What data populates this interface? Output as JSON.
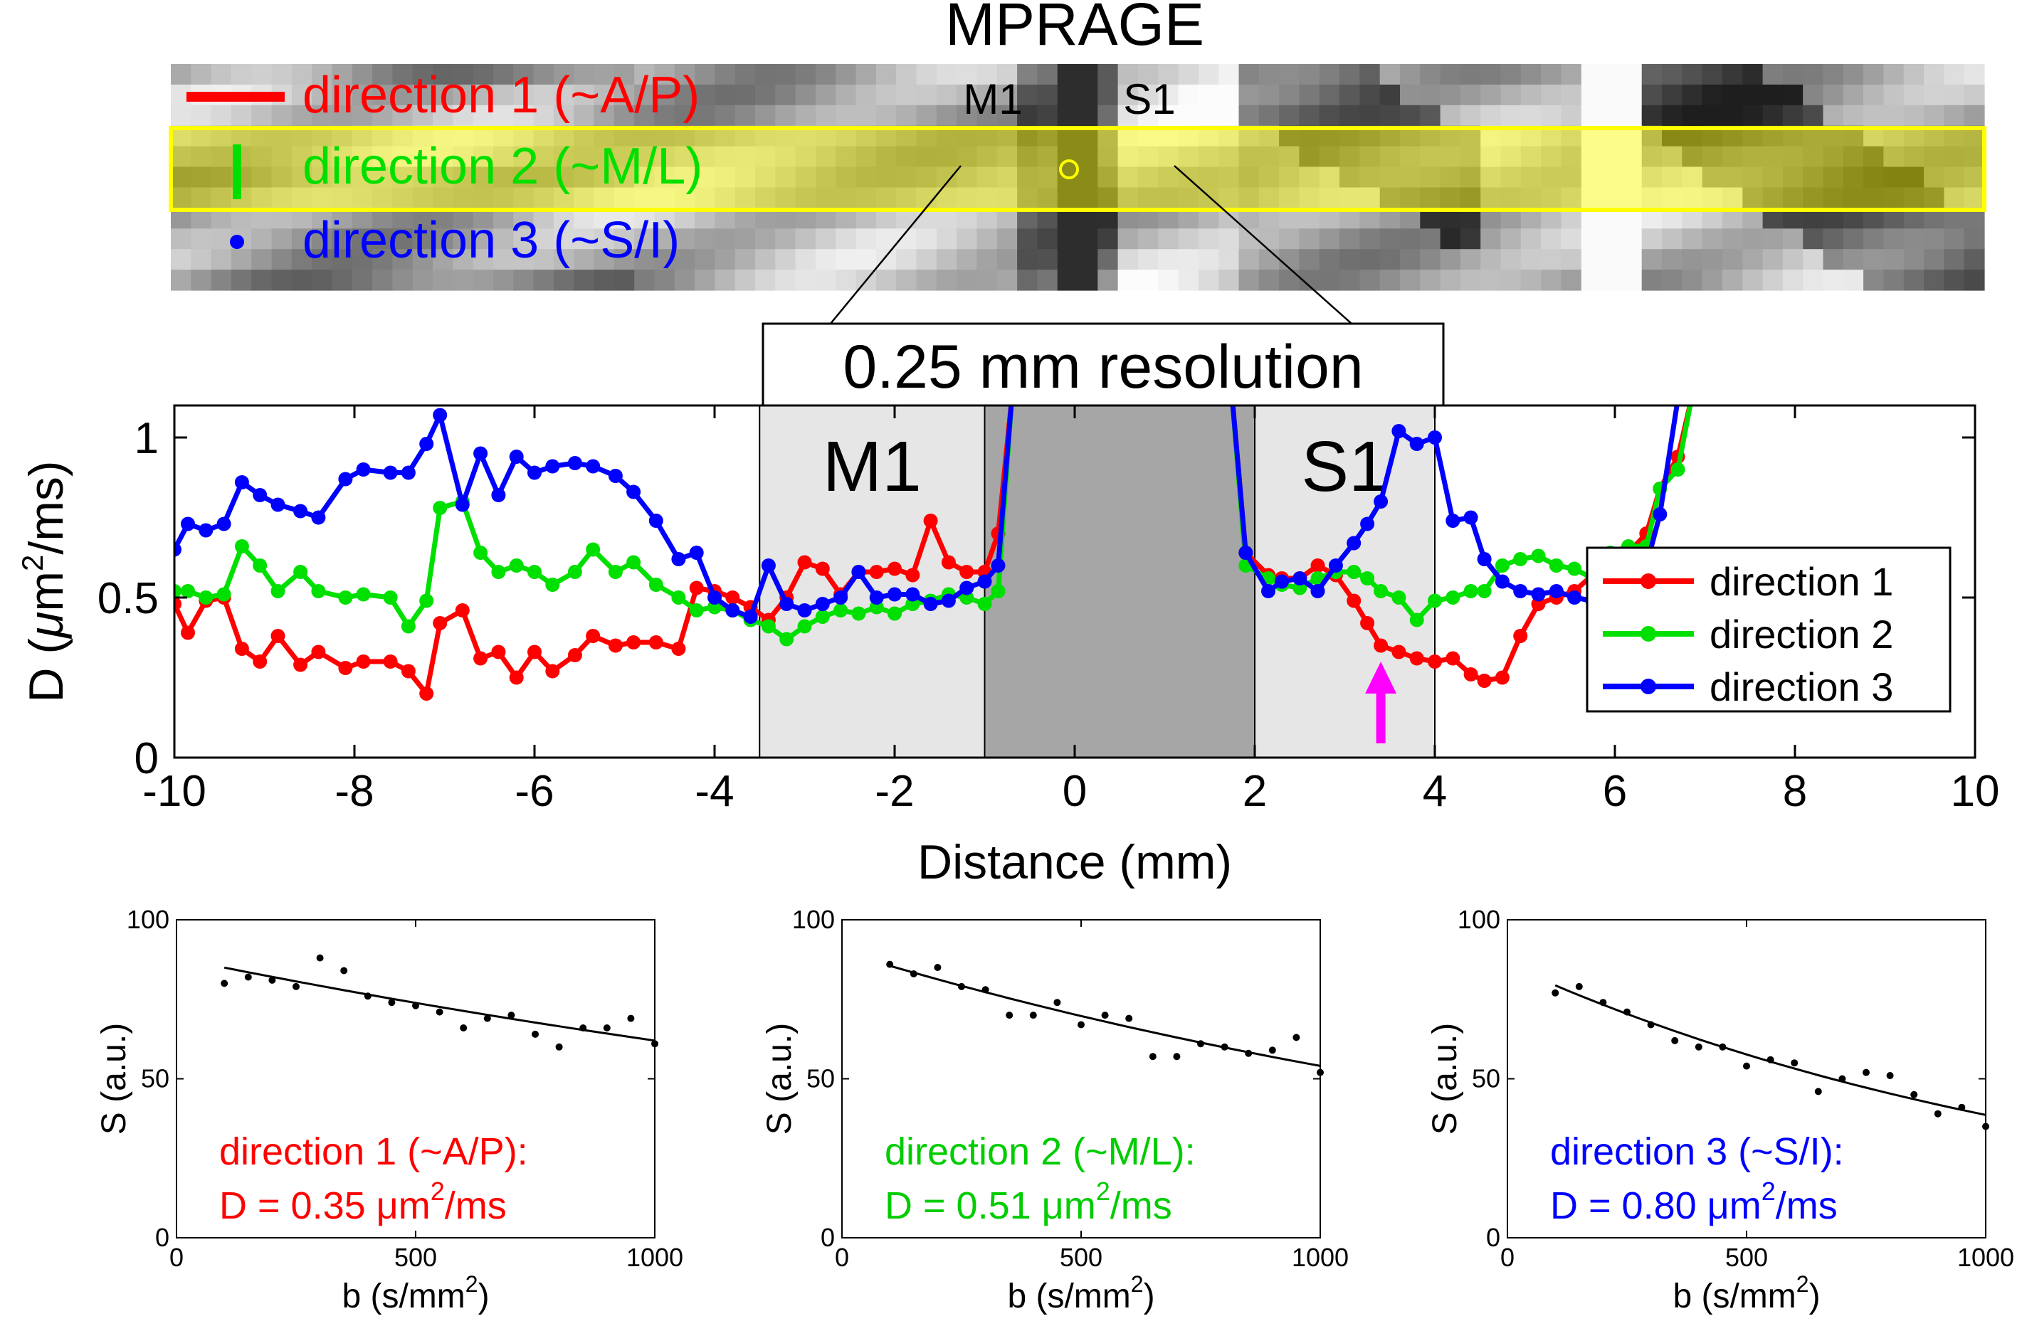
{
  "mprage": {
    "title": "MPRAGE",
    "label_m1": "M1",
    "label_s1": "S1",
    "legend": [
      {
        "label": "direction 1 (~A/P)",
        "color": "#ff0000"
      },
      {
        "label": "direction 2 (~M/L)",
        "color": "#00e000"
      },
      {
        "label": "direction 3 (~S/I)",
        "color": "#0000ff"
      }
    ],
    "highlight_color": "#ffff00"
  },
  "resolution_label": "0.25 mm resolution",
  "chart_data": [
    {
      "type": "line",
      "title": "",
      "xlabel": "Distance (mm)",
      "ylabel_parts": {
        "prefix": "D (",
        "mu": "μ",
        "unit": "m",
        "sup": "2",
        "suffix": "/ms)"
      },
      "xlim": [
        -10,
        10
      ],
      "ylim": [
        0,
        1.1
      ],
      "xticks": [
        -10,
        -8,
        -6,
        -4,
        -2,
        0,
        2,
        4,
        6,
        8,
        10
      ],
      "yticks": [
        0,
        0.5,
        1
      ],
      "ytick_labels": [
        "0",
        "0.5",
        "1"
      ],
      "regions": [
        {
          "label": "M1",
          "x0": -3.5,
          "x1": -1.0,
          "shade": "light"
        },
        {
          "label": "",
          "x0": -1.0,
          "x1": 2.0,
          "shade": "dark"
        },
        {
          "label": "S1",
          "x0": 2.0,
          "x1": 4.0,
          "shade": "light"
        }
      ],
      "arrow_x": 3.4,
      "arrow_color": "#ff00ff",
      "legend": [
        "direction 1",
        "direction 2",
        "direction 3"
      ],
      "series": [
        {
          "name": "direction 1",
          "color": "#ff0000",
          "segments": [
            {
              "x": [
                -10,
                -9.85,
                -9.65,
                -9.45,
                -9.25,
                -9.05,
                -8.85,
                -8.6,
                -8.4,
                -8.1,
                -7.9,
                -7.6,
                -7.4,
                -7.2,
                -7.05,
                -6.8,
                -6.6,
                -6.4,
                -6.2,
                -6.0,
                -5.8,
                -5.55,
                -5.35,
                -5.1,
                -4.9,
                -4.65,
                -4.4,
                -4.2,
                -4.0,
                -3.8,
                -3.6,
                -3.4,
                -3.2,
                -3.0,
                -2.8,
                -2.6,
                -2.4,
                -2.2,
                -2.0,
                -1.8,
                -1.6,
                -1.4,
                -1.2,
                -1.0,
                -0.85,
                -0.7
              ],
              "y": [
                0.48,
                0.39,
                0.49,
                0.5,
                0.34,
                0.3,
                0.38,
                0.29,
                0.33,
                0.28,
                0.3,
                0.3,
                0.27,
                0.2,
                0.42,
                0.46,
                0.31,
                0.33,
                0.25,
                0.33,
                0.27,
                0.32,
                0.38,
                0.35,
                0.36,
                0.36,
                0.34,
                0.53,
                0.52,
                0.5,
                0.47,
                0.43,
                0.5,
                0.61,
                0.59,
                0.51,
                0.58,
                0.58,
                0.59,
                0.57,
                0.74,
                0.61,
                0.58,
                0.58,
                0.7,
                1.12
              ]
            },
            {
              "x": [
                1.75,
                1.9,
                2.15,
                2.3,
                2.5,
                2.7,
                2.9,
                3.1,
                3.25,
                3.4,
                3.6,
                3.8,
                4.0,
                4.2,
                4.4,
                4.55,
                4.75,
                4.95,
                5.15,
                5.35,
                5.55,
                5.75,
                5.95,
                6.15,
                6.35,
                6.5,
                6.7,
                6.85,
                7.0
              ],
              "y": [
                1.12,
                0.64,
                0.57,
                0.56,
                0.56,
                0.6,
                0.57,
                0.49,
                0.42,
                0.35,
                0.33,
                0.31,
                0.3,
                0.31,
                0.26,
                0.24,
                0.25,
                0.38,
                0.48,
                0.5,
                0.52,
                0.57,
                0.59,
                0.64,
                0.7,
                0.84,
                0.94,
                1.12,
                1.12
              ]
            }
          ]
        },
        {
          "name": "direction 2",
          "color": "#00e000",
          "segments": [
            {
              "x": [
                -10,
                -9.85,
                -9.65,
                -9.45,
                -9.25,
                -9.05,
                -8.85,
                -8.6,
                -8.4,
                -8.1,
                -7.9,
                -7.6,
                -7.4,
                -7.2,
                -7.05,
                -6.8,
                -6.6,
                -6.4,
                -6.2,
                -6.0,
                -5.8,
                -5.55,
                -5.35,
                -5.1,
                -4.9,
                -4.65,
                -4.4,
                -4.2,
                -4.0,
                -3.8,
                -3.6,
                -3.4,
                -3.2,
                -3.0,
                -2.8,
                -2.6,
                -2.4,
                -2.2,
                -2.0,
                -1.8,
                -1.6,
                -1.4,
                -1.2,
                -1.0,
                -0.85,
                -0.7
              ],
              "y": [
                0.52,
                0.52,
                0.5,
                0.51,
                0.66,
                0.6,
                0.52,
                0.58,
                0.52,
                0.5,
                0.51,
                0.5,
                0.41,
                0.49,
                0.78,
                0.8,
                0.64,
                0.58,
                0.6,
                0.58,
                0.54,
                0.58,
                0.65,
                0.58,
                0.61,
                0.54,
                0.5,
                0.46,
                0.47,
                0.46,
                0.43,
                0.41,
                0.37,
                0.41,
                0.44,
                0.46,
                0.45,
                0.47,
                0.45,
                0.48,
                0.49,
                0.51,
                0.5,
                0.48,
                0.52,
                1.12
              ]
            },
            {
              "x": [
                1.75,
                1.9,
                2.15,
                2.3,
                2.5,
                2.7,
                2.9,
                3.1,
                3.25,
                3.4,
                3.6,
                3.8,
                4.0,
                4.2,
                4.4,
                4.55,
                4.75,
                4.95,
                5.15,
                5.35,
                5.55,
                5.75,
                5.95,
                6.15,
                6.35,
                6.5,
                6.7,
                6.85,
                7.0
              ],
              "y": [
                1.12,
                0.6,
                0.56,
                0.54,
                0.53,
                0.56,
                0.58,
                0.58,
                0.56,
                0.52,
                0.5,
                0.43,
                0.49,
                0.5,
                0.52,
                0.52,
                0.6,
                0.62,
                0.63,
                0.6,
                0.59,
                0.56,
                0.64,
                0.66,
                0.66,
                0.84,
                0.9,
                1.12,
                1.12
              ]
            }
          ]
        },
        {
          "name": "direction 3",
          "color": "#0000ff",
          "segments": [
            {
              "x": [
                -10,
                -9.85,
                -9.65,
                -9.45,
                -9.25,
                -9.05,
                -8.85,
                -8.6,
                -8.4,
                -8.1,
                -7.9,
                -7.6,
                -7.4,
                -7.2,
                -7.05,
                -6.8,
                -6.6,
                -6.4,
                -6.2,
                -6.0,
                -5.8,
                -5.55,
                -5.35,
                -5.1,
                -4.9,
                -4.65,
                -4.4,
                -4.2,
                -4.0,
                -3.8,
                -3.6,
                -3.4,
                -3.2,
                -3.0,
                -2.8,
                -2.6,
                -2.4,
                -2.2,
                -2.0,
                -1.8,
                -1.6,
                -1.4,
                -1.2,
                -1.0,
                -0.85,
                -0.7
              ],
              "y": [
                0.65,
                0.73,
                0.71,
                0.73,
                0.86,
                0.82,
                0.79,
                0.77,
                0.75,
                0.87,
                0.9,
                0.89,
                0.89,
                0.98,
                1.07,
                0.79,
                0.95,
                0.82,
                0.94,
                0.89,
                0.91,
                0.92,
                0.91,
                0.88,
                0.83,
                0.74,
                0.62,
                0.64,
                0.5,
                0.46,
                0.44,
                0.6,
                0.48,
                0.46,
                0.48,
                0.5,
                0.58,
                0.5,
                0.51,
                0.51,
                0.48,
                0.49,
                0.53,
                0.55,
                0.6,
                1.12
              ]
            },
            {
              "x": [
                1.75,
                1.9,
                2.15,
                2.3,
                2.5,
                2.7,
                2.9,
                3.1,
                3.25,
                3.4,
                3.6,
                3.8,
                4.0,
                4.2,
                4.4,
                4.55,
                4.75,
                4.95,
                5.15,
                5.35,
                5.55,
                5.75,
                5.95,
                6.15,
                6.35,
                6.5,
                6.7,
                6.85,
                7.0
              ],
              "y": [
                1.12,
                0.64,
                0.52,
                0.55,
                0.56,
                0.52,
                0.6,
                0.67,
                0.73,
                0.8,
                1.02,
                0.98,
                1.0,
                0.74,
                0.75,
                0.62,
                0.55,
                0.52,
                0.51,
                0.52,
                0.5,
                0.49,
                0.55,
                0.59,
                0.6,
                0.76,
                1.12,
                1.12,
                1.12
              ]
            }
          ]
        }
      ]
    },
    {
      "type": "scatter",
      "title": "direction 1",
      "xlabel": "b (s/mm2)",
      "xlabel_main": "b (s/mm",
      "xlabel_sup": "2",
      "xlabel_end": ")",
      "ylabel": "S (a.u.)",
      "xlim": [
        0,
        1000
      ],
      "ylim": [
        0,
        100
      ],
      "xticks": [
        0,
        500,
        1000
      ],
      "yticks": [
        0,
        50,
        100
      ],
      "points": {
        "x": [
          100,
          150,
          200,
          250,
          300,
          350,
          400,
          450,
          500,
          550,
          600,
          650,
          700,
          750,
          800,
          850,
          900,
          950,
          1000
        ],
        "y": [
          80,
          82,
          81,
          79,
          88,
          84,
          76,
          74,
          73,
          71,
          66,
          69,
          70,
          64,
          60,
          66,
          66,
          69,
          61
        ]
      },
      "fit_D": 0.35,
      "fit_S0": 88,
      "annotation_line1": "direction 1 (~A/P):",
      "annotation_line2": "D = 0.35 μm",
      "annotation_sup": "2",
      "annotation_end": "/ms",
      "color": "#ff0000"
    },
    {
      "type": "scatter",
      "title": "direction 2",
      "xlabel": "b (s/mm2)",
      "xlabel_main": "b (s/mm",
      "xlabel_sup": "2",
      "xlabel_end": ")",
      "ylabel": "S (a.u.)",
      "xlim": [
        0,
        1000
      ],
      "ylim": [
        0,
        100
      ],
      "xticks": [
        0,
        500,
        1000
      ],
      "yticks": [
        0,
        50,
        100
      ],
      "points": {
        "x": [
          100,
          150,
          200,
          250,
          300,
          350,
          400,
          450,
          500,
          550,
          600,
          650,
          700,
          750,
          800,
          850,
          900,
          950,
          1000
        ],
        "y": [
          86,
          83,
          85,
          79,
          78,
          70,
          70,
          74,
          67,
          70,
          69,
          57,
          57,
          61,
          60,
          58,
          59,
          63,
          52
        ]
      },
      "fit_D": 0.51,
      "fit_S0": 90,
      "annotation_line1": "direction 2 (~M/L):",
      "annotation_line2": "D = 0.51 μm",
      "annotation_sup": "2",
      "annotation_end": "/ms",
      "color": "#00cc00"
    },
    {
      "type": "scatter",
      "title": "direction 3",
      "xlabel": "b (s/mm2)",
      "xlabel_main": "b (s/mm",
      "xlabel_sup": "2",
      "xlabel_end": ")",
      "ylabel": "S (a.u.)",
      "xlim": [
        0,
        1000
      ],
      "ylim": [
        0,
        100
      ],
      "xticks": [
        0,
        500,
        1000
      ],
      "yticks": [
        0,
        50,
        100
      ],
      "points": {
        "x": [
          100,
          150,
          200,
          250,
          300,
          350,
          400,
          450,
          500,
          550,
          600,
          650,
          700,
          750,
          800,
          850,
          900,
          950,
          1000
        ],
        "y": [
          77,
          79,
          74,
          71,
          67,
          62,
          60,
          60,
          54,
          56,
          55,
          46,
          50,
          52,
          51,
          45,
          39,
          41,
          35
        ]
      },
      "fit_D": 0.8,
      "fit_S0": 86,
      "annotation_line1": "direction 3 (~S/I):",
      "annotation_line2": "D = 0.80 μm",
      "annotation_sup": "2",
      "annotation_end": "/ms",
      "color": "#0000ff"
    }
  ]
}
